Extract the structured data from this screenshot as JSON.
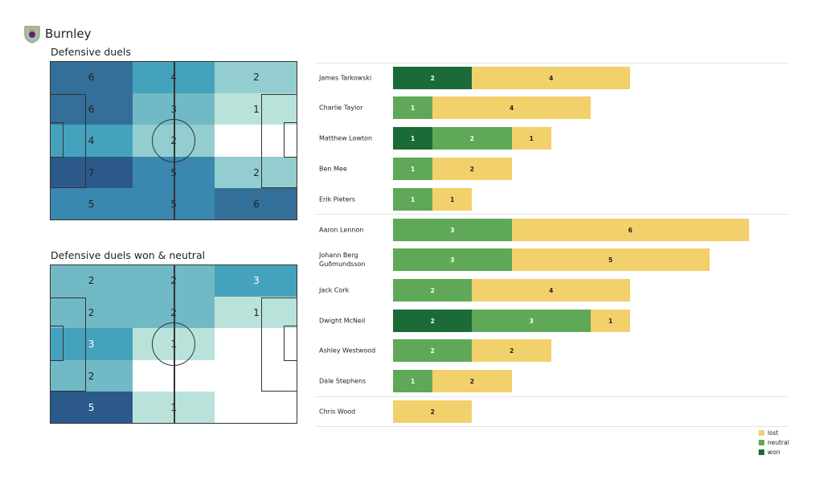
{
  "team": "Burnley",
  "colors": {
    "won": "#1a6b37",
    "neutral": "#5fa857",
    "lost": "#f2d06b"
  },
  "chart_data": [
    {
      "type": "heatmap",
      "title": "Defensive duels",
      "grid": [
        [
          6,
          4,
          2
        ],
        [
          6,
          3,
          1
        ],
        [
          4,
          2,
          0
        ],
        [
          7,
          5,
          2
        ],
        [
          5,
          5,
          6
        ]
      ],
      "labels": [
        [
          "6",
          "4",
          "2"
        ],
        [
          "6",
          "3",
          "1"
        ],
        [
          "4",
          "2",
          ""
        ],
        [
          "7",
          "5",
          "2"
        ],
        [
          "5",
          "5",
          "6"
        ]
      ]
    },
    {
      "type": "heatmap",
      "title": "Defensive duels won & neutral",
      "grid": [
        [
          2,
          2,
          3
        ],
        [
          2,
          2,
          1
        ],
        [
          3,
          1,
          0
        ],
        [
          2,
          0,
          0
        ],
        [
          5,
          1,
          0
        ]
      ],
      "labels": [
        [
          "2",
          "2",
          "3"
        ],
        [
          "2",
          "2",
          "1"
        ],
        [
          "3",
          "1",
          ""
        ],
        [
          "2",
          "",
          ""
        ],
        [
          "5",
          "1",
          ""
        ]
      ]
    },
    {
      "type": "bar",
      "orientation": "horizontal",
      "stacked": true,
      "legend": [
        "lost",
        "neutral",
        "won"
      ],
      "legend_position": "bottom-right",
      "players": [
        {
          "name": "James  Tarkowski",
          "won": 2,
          "neutral": 0,
          "lost": 4
        },
        {
          "name": "Charlie Taylor",
          "won": 0,
          "neutral": 1,
          "lost": 4
        },
        {
          "name": "Matthew Lowton",
          "won": 1,
          "neutral": 2,
          "lost": 1
        },
        {
          "name": "Ben Mee",
          "won": 0,
          "neutral": 1,
          "lost": 2
        },
        {
          "name": "Erik Pieters",
          "won": 0,
          "neutral": 1,
          "lost": 1
        },
        {
          "name": "Aaron  Lennon",
          "won": 0,
          "neutral": 3,
          "lost": 6
        },
        {
          "name": "Johann  Berg Guðmundsson",
          "won": 0,
          "neutral": 3,
          "lost": 5
        },
        {
          "name": "Jack Cork",
          "won": 0,
          "neutral": 2,
          "lost": 4
        },
        {
          "name": "Dwight McNeil",
          "won": 2,
          "neutral": 3,
          "lost": 1
        },
        {
          "name": "Ashley Westwood",
          "won": 0,
          "neutral": 2,
          "lost": 2
        },
        {
          "name": "Dale Stephens",
          "won": 0,
          "neutral": 1,
          "lost": 2
        },
        {
          "name": "Chris Wood",
          "won": 0,
          "neutral": 0,
          "lost": 2
        }
      ]
    }
  ]
}
